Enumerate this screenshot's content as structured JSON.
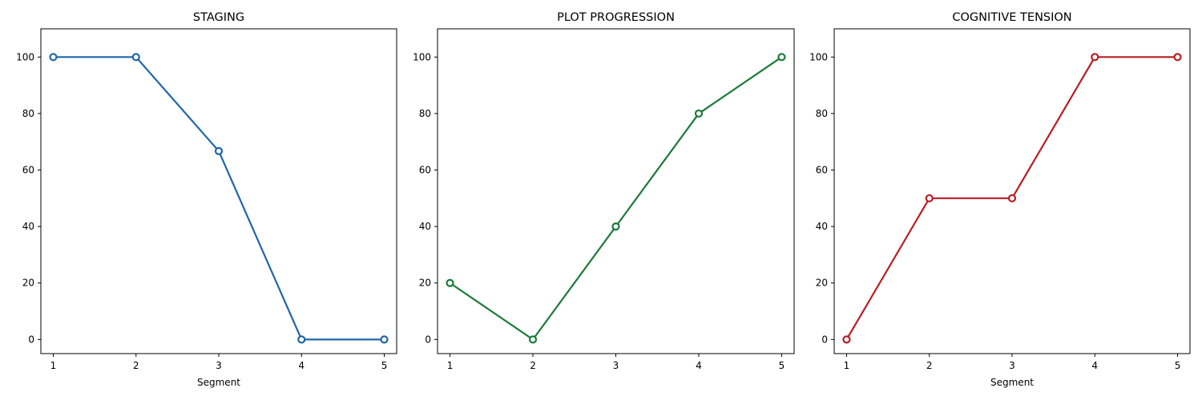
{
  "chart_data": [
    {
      "type": "line",
      "title": "STAGING",
      "xlabel": "Segment",
      "ylabel": "",
      "x": [
        1,
        2,
        3,
        4,
        5
      ],
      "series": [
        {
          "values": [
            100,
            100,
            66.7,
            0,
            0
          ],
          "color": "#1f66aa"
        }
      ],
      "xlim": [
        0.85,
        5.15
      ],
      "ylim": [
        -5,
        110
      ],
      "xticks": [
        1,
        2,
        3,
        4,
        5
      ],
      "yticks": [
        0,
        20,
        40,
        60,
        80,
        100
      ],
      "grid": false,
      "legend": "none"
    },
    {
      "type": "line",
      "title": "PLOT PROGRESSION",
      "xlabel": "",
      "ylabel": "",
      "x": [
        1,
        2,
        3,
        4,
        5
      ],
      "series": [
        {
          "values": [
            20,
            0,
            40,
            80,
            100
          ],
          "color": "#1c7a3a"
        }
      ],
      "xlim": [
        0.85,
        5.15
      ],
      "ylim": [
        -5,
        110
      ],
      "xticks": [
        1,
        2,
        3,
        4,
        5
      ],
      "yticks": [
        0,
        20,
        40,
        60,
        80,
        100
      ],
      "grid": false,
      "legend": "none"
    },
    {
      "type": "line",
      "title": "COGNITIVE TENSION",
      "xlabel": "Segment",
      "ylabel": "",
      "x": [
        1,
        2,
        3,
        4,
        5
      ],
      "series": [
        {
          "values": [
            0,
            50,
            50,
            100,
            100
          ],
          "color": "#b81d24"
        }
      ],
      "xlim": [
        0.85,
        5.15
      ],
      "ylim": [
        -5,
        110
      ],
      "xticks": [
        1,
        2,
        3,
        4,
        5
      ],
      "yticks": [
        0,
        20,
        40,
        60,
        80,
        100
      ],
      "grid": false,
      "legend": "none"
    }
  ]
}
